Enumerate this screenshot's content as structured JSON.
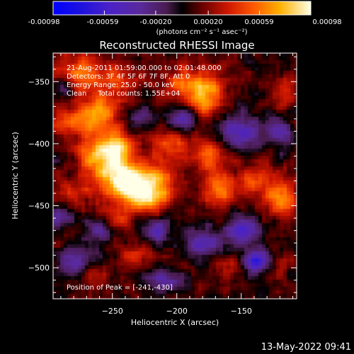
{
  "colorbar": {
    "tick_labels": [
      "-0.00098",
      "-0.00059",
      "-0.00020",
      "0.00020",
      "0.00059",
      "0.00098"
    ],
    "unit_label": "(photons cm⁻² s⁻¹ asec⁻²)"
  },
  "footer": {
    "timestamp": "13-May-2022 09:41"
  },
  "chart_data": {
    "type": "heatmap",
    "title": "Reconstructed RHESSI Image",
    "xlabel": "Heliocentric X (arcsec)",
    "ylabel": "Heliocentric Y (arcsec)",
    "x_ticks": [
      -250,
      -200,
      -150
    ],
    "y_ticks": [
      -350,
      -400,
      -450,
      -500
    ],
    "x_range": [
      -296,
      -107
    ],
    "y_range": [
      -525,
      -327
    ],
    "color_range": [
      -0.00098,
      0.00098
    ],
    "annotations": [
      "21-Aug-2011 01:59:00.000 to 02:01:48.000",
      "Detectors: 3F 4F 5F 6F 7F 8F, Att 0",
      "Energy Range: 25.0 - 50.0 keV",
      "Clean     Total counts: 1.55E+04"
    ],
    "peak_label": "Position of Peak = [-241,-430]",
    "peak": {
      "x": -241,
      "y": -430
    },
    "blobs": [
      {
        "x": -241,
        "y": -430,
        "sx": 13,
        "sy": 10,
        "amp": 1.0
      },
      {
        "x": -248,
        "y": -405,
        "sx": 10,
        "sy": 11,
        "amp": 0.85
      },
      {
        "x": -222,
        "y": -444,
        "sx": 11,
        "sy": 8,
        "amp": 0.8
      },
      {
        "x": -265,
        "y": -410,
        "sx": 9,
        "sy": 10,
        "amp": 0.55
      },
      {
        "x": -275,
        "y": -382,
        "sx": 14,
        "sy": 8,
        "amp": 0.55
      },
      {
        "x": -258,
        "y": -372,
        "sx": 10,
        "sy": 8,
        "amp": 0.5
      },
      {
        "x": -275,
        "y": -345,
        "sx": 12,
        "sy": 11,
        "amp": 0.58
      },
      {
        "x": -245,
        "y": -350,
        "sx": 10,
        "sy": 9,
        "amp": 0.42
      },
      {
        "x": -213,
        "y": -425,
        "sx": 9,
        "sy": 9,
        "amp": 0.45
      },
      {
        "x": -205,
        "y": -400,
        "sx": 10,
        "sy": 8,
        "amp": 0.42
      },
      {
        "x": -196,
        "y": -352,
        "sx": 10,
        "sy": 11,
        "amp": 0.45
      },
      {
        "x": -176,
        "y": -360,
        "sx": 10,
        "sy": 12,
        "amp": 0.65
      },
      {
        "x": -176,
        "y": -408,
        "sx": 9,
        "sy": 9,
        "amp": 0.45
      },
      {
        "x": -168,
        "y": -437,
        "sx": 9,
        "sy": 10,
        "amp": 0.55
      },
      {
        "x": -138,
        "y": -430,
        "sx": 10,
        "sy": 10,
        "amp": 0.45
      },
      {
        "x": -118,
        "y": -445,
        "sx": 8,
        "sy": 10,
        "amp": 0.55
      },
      {
        "x": -116,
        "y": -360,
        "sx": 7,
        "sy": 9,
        "amp": 0.28
      },
      {
        "x": -282,
        "y": -440,
        "sx": 9,
        "sy": 9,
        "amp": 0.28
      },
      {
        "x": -248,
        "y": -460,
        "sx": 10,
        "sy": 8,
        "amp": 0.3
      },
      {
        "x": -232,
        "y": -490,
        "sx": 10,
        "sy": 8,
        "amp": 0.32
      },
      {
        "x": -265,
        "y": -505,
        "sx": 8,
        "sy": 6,
        "amp": 0.22
      },
      {
        "x": -160,
        "y": -500,
        "sx": 8,
        "sy": 7,
        "amp": 0.26
      },
      {
        "x": -122,
        "y": -500,
        "sx": 7,
        "sy": 7,
        "amp": 0.22
      },
      {
        "x": -287,
        "y": -355,
        "sx": 6,
        "sy": 6,
        "amp": -0.5
      },
      {
        "x": -230,
        "y": -378,
        "sx": 7,
        "sy": 6,
        "amp": -0.35
      },
      {
        "x": -195,
        "y": -380,
        "sx": 8,
        "sy": 7,
        "amp": -0.5
      },
      {
        "x": -150,
        "y": -390,
        "sx": 11,
        "sy": 10,
        "amp": -0.55
      },
      {
        "x": -150,
        "y": -470,
        "sx": 10,
        "sy": 8,
        "amp": -0.55
      },
      {
        "x": -180,
        "y": -480,
        "sx": 9,
        "sy": 8,
        "amp": -0.5
      },
      {
        "x": -138,
        "y": -495,
        "sx": 8,
        "sy": 7,
        "amp": -0.72
      },
      {
        "x": -215,
        "y": -470,
        "sx": 8,
        "sy": 7,
        "amp": -0.5
      },
      {
        "x": -260,
        "y": -470,
        "sx": 8,
        "sy": 7,
        "amp": -0.45
      },
      {
        "x": -280,
        "y": -495,
        "sx": 8,
        "sy": 8,
        "amp": -0.5
      },
      {
        "x": -210,
        "y": -510,
        "sx": 8,
        "sy": 6,
        "amp": -0.5
      },
      {
        "x": -120,
        "y": -390,
        "sx": 7,
        "sy": 8,
        "amp": -0.45
      },
      {
        "x": -290,
        "y": -460,
        "sx": 6,
        "sy": 7,
        "amp": -0.4
      }
    ]
  }
}
